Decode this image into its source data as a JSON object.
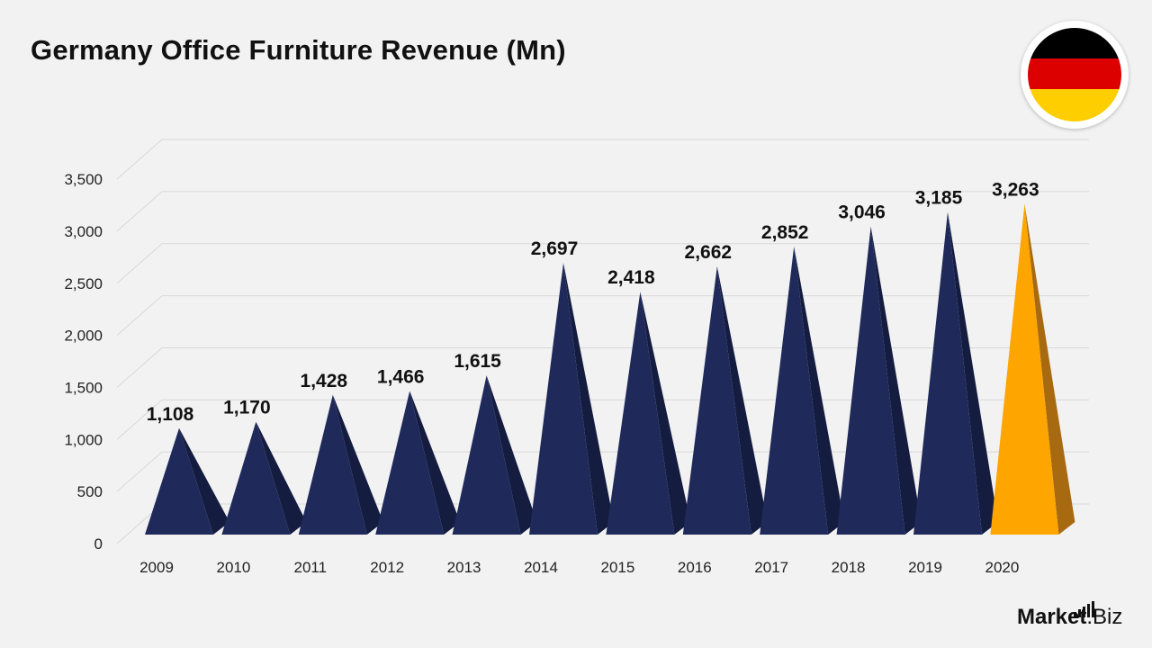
{
  "title": "Germany Office Furniture Revenue (Mn)",
  "flag": {
    "icon": "germany-flag-icon",
    "colors": [
      "#000000",
      "#dd0000",
      "#ffce00"
    ]
  },
  "logo": {
    "brand": "Market",
    "tld": ".Biz",
    "icon": "bar-chart-icon"
  },
  "colors": {
    "bar": "#1f2a5a",
    "highlight": "#ffa500",
    "grid": "#d8d8d8",
    "background": "#f2f2f2"
  },
  "chart_data": {
    "type": "bar",
    "title": "Germany Office Furniture Revenue (Mn)",
    "categories": [
      "2009",
      "2010",
      "2011",
      "2012",
      "2013",
      "2014",
      "2015",
      "2016",
      "2017",
      "2018",
      "2019",
      "2020"
    ],
    "values": [
      1108,
      1170,
      1428,
      1466,
      1615,
      2697,
      2418,
      2662,
      2852,
      3046,
      3185,
      3263
    ],
    "data_labels": [
      "1,108",
      "1,170",
      "1,428",
      "1,466",
      "1,615",
      "2,697",
      "2,418",
      "2,662",
      "2,852",
      "3,046",
      "3,185",
      "3,263"
    ],
    "y_ticks": [
      "0",
      "500",
      "1,000",
      "1,500",
      "2,000",
      "2,500",
      "3,000",
      "3,500"
    ],
    "y_tick_values": [
      0,
      500,
      1000,
      1500,
      2000,
      2500,
      3000,
      3500
    ],
    "ylim": [
      0,
      3500
    ],
    "highlight_index": 11,
    "bar_shape": "pyramid",
    "grid": true,
    "legend": "none"
  }
}
